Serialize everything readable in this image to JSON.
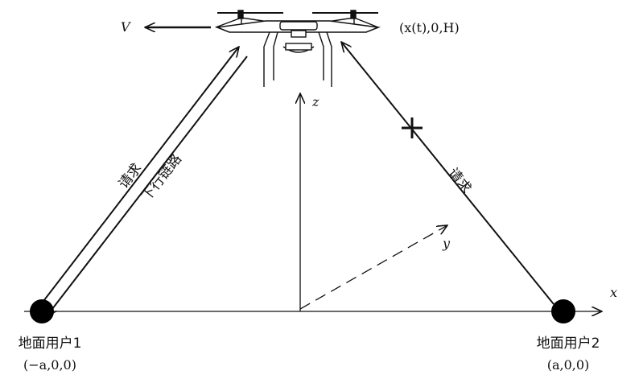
{
  "drone": {
    "velocity_label": "V",
    "position_label": "(x(t),0,H)"
  },
  "axes": {
    "x": "x",
    "y": "y",
    "z": "z"
  },
  "user1": {
    "name": "地面用户1",
    "coords": "(−a,0,0)"
  },
  "user2": {
    "name": "地面用户2",
    "coords": "(a,0,0)"
  },
  "links": {
    "user1_request": "请求",
    "user1_downlink": "下行链路",
    "user2_request": "请求"
  }
}
